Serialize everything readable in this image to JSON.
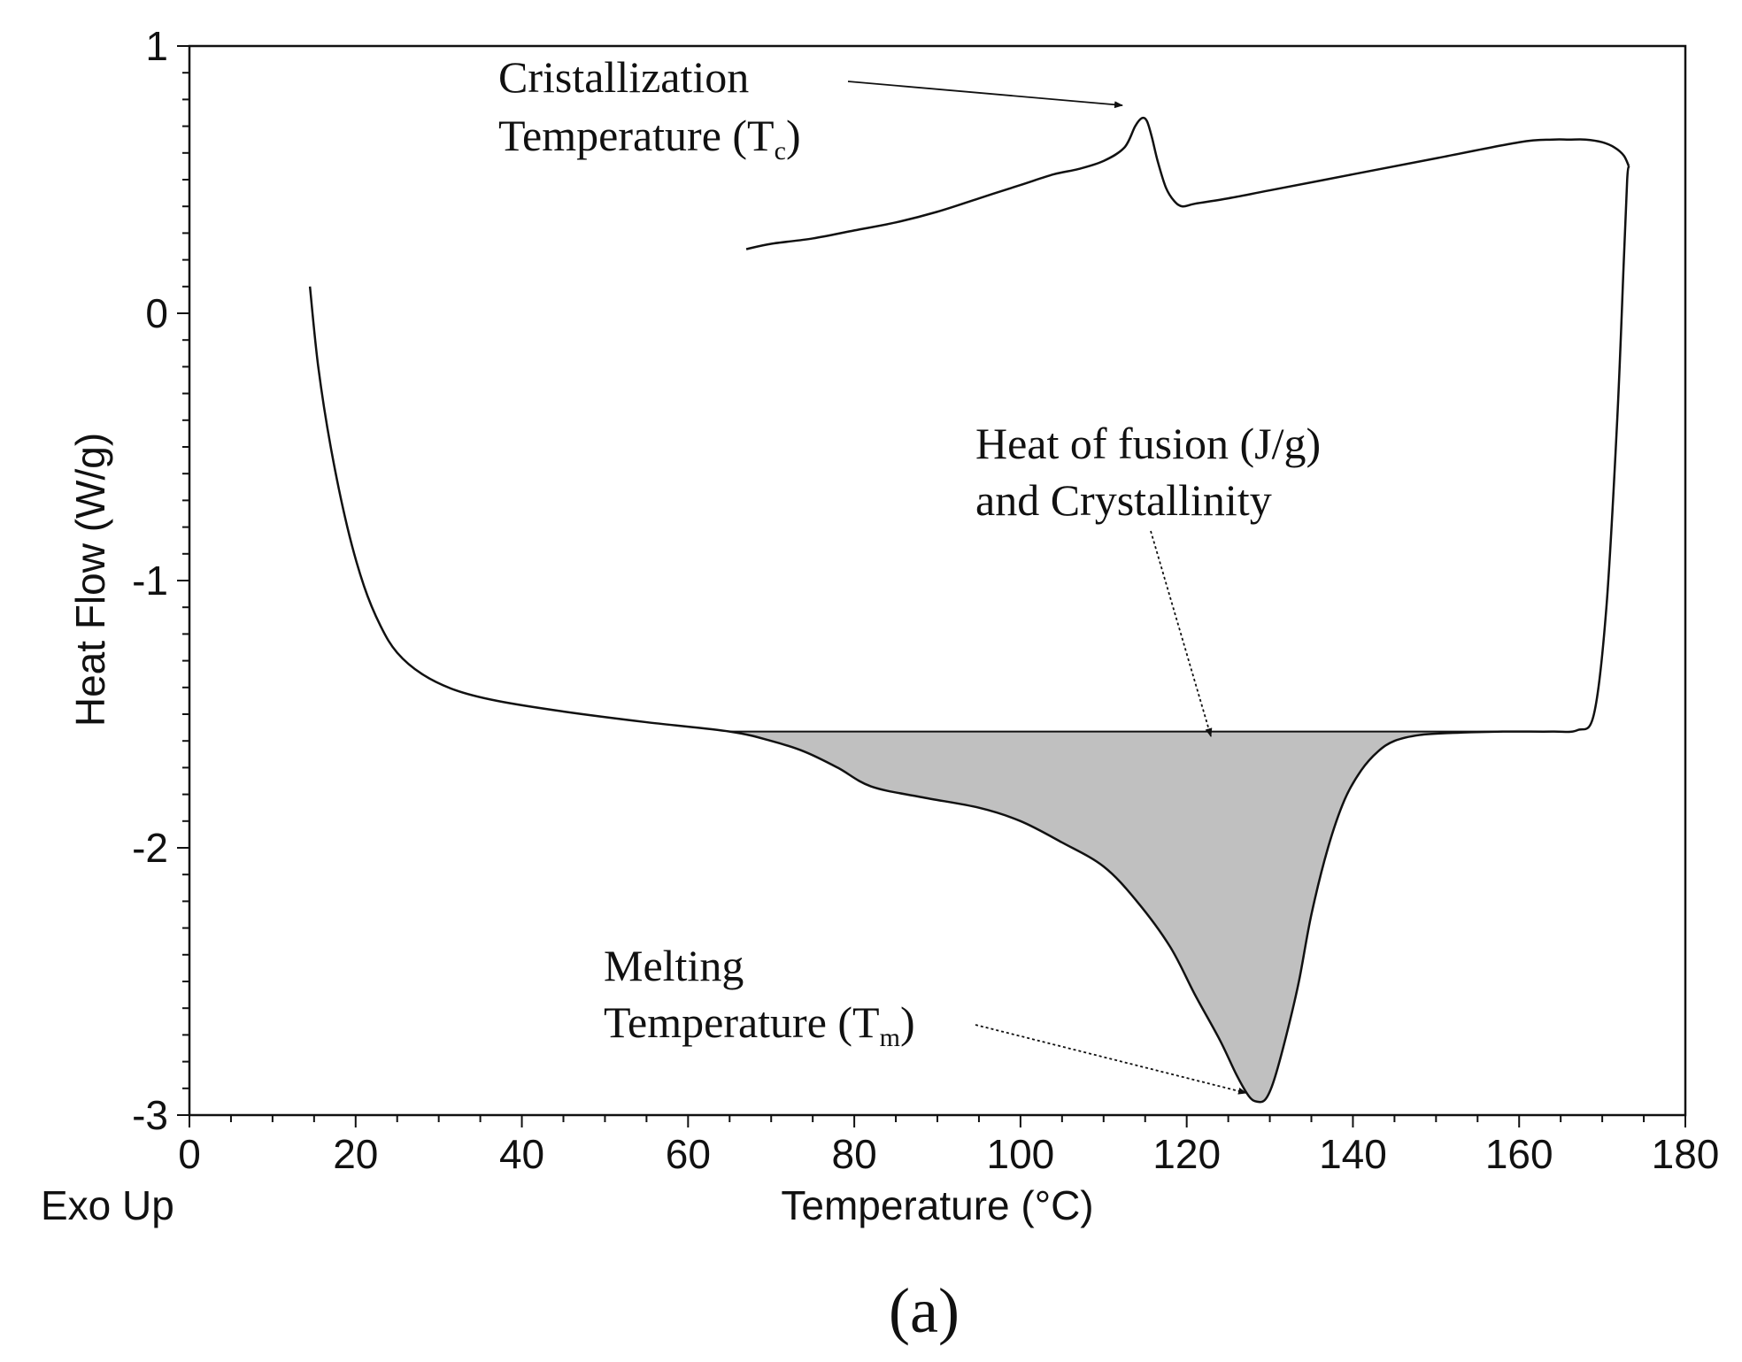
{
  "chart_data": {
    "type": "line",
    "title": "",
    "xlabel": "Temperature (°C)",
    "ylabel": "Heat Flow (W/g)",
    "corner_label": "Exo Up",
    "caption": "(a)",
    "xlim": [
      0,
      180
    ],
    "ylim": [
      -3,
      1
    ],
    "xticks": [
      0,
      20,
      40,
      60,
      80,
      100,
      120,
      140,
      160,
      180
    ],
    "yticks": [
      1,
      0,
      -1,
      -2,
      -3
    ],
    "xtick_labels": [
      "0",
      "20",
      "40",
      "60",
      "80",
      "100",
      "120",
      "140",
      "160",
      "180"
    ],
    "ytick_labels": [
      "1",
      "0",
      "-1",
      "-2",
      "-3"
    ],
    "x_minor_step": 5,
    "y_minor_step": 0.1,
    "colors": {
      "line": "#111111",
      "fill": "#c0c0c0"
    },
    "series": [
      {
        "name": "heating",
        "x": [
          14.5,
          15.5,
          17,
          19,
          21,
          23,
          25,
          28,
          32,
          37,
          45,
          55,
          65,
          70,
          74,
          78,
          82,
          88,
          95,
          100,
          105,
          110,
          114,
          118,
          121,
          124,
          126,
          127.5,
          128.5,
          129.5,
          130.5,
          132,
          133.5,
          135,
          137,
          139,
          141,
          143,
          145,
          148,
          152,
          158,
          164,
          167,
          169,
          170.5,
          171.8,
          172.6,
          173.0,
          173.2
        ],
        "y": [
          0.1,
          -0.2,
          -0.5,
          -0.8,
          -1.02,
          -1.17,
          -1.27,
          -1.35,
          -1.41,
          -1.45,
          -1.49,
          -1.53,
          -1.565,
          -1.6,
          -1.64,
          -1.7,
          -1.77,
          -1.81,
          -1.85,
          -1.9,
          -1.98,
          -2.07,
          -2.2,
          -2.37,
          -2.55,
          -2.72,
          -2.85,
          -2.93,
          -2.95,
          -2.94,
          -2.87,
          -2.7,
          -2.5,
          -2.25,
          -2.0,
          -1.82,
          -1.71,
          -1.64,
          -1.6,
          -1.578,
          -1.57,
          -1.565,
          -1.565,
          -1.56,
          -1.5,
          -1.1,
          -0.4,
          0.2,
          0.5,
          0.55
        ]
      },
      {
        "name": "cooling",
        "x": [
          173.2,
          172.6,
          171.5,
          170,
          168,
          166,
          164,
          160,
          150,
          140,
          130,
          125,
          121,
          119.5,
          118.5,
          117.5,
          116.5,
          115.8,
          115.2,
          114.6,
          113.8,
          112.5,
          110,
          107,
          104,
          100,
          95,
          90,
          85,
          80,
          75,
          70,
          67
        ],
        "y": [
          0.55,
          0.59,
          0.62,
          0.64,
          0.65,
          0.65,
          0.65,
          0.64,
          0.58,
          0.52,
          0.46,
          0.43,
          0.41,
          0.4,
          0.42,
          0.47,
          0.57,
          0.66,
          0.72,
          0.73,
          0.7,
          0.62,
          0.57,
          0.54,
          0.52,
          0.48,
          0.43,
          0.38,
          0.34,
          0.31,
          0.28,
          0.26,
          0.24
        ]
      }
    ],
    "shaded_region": {
      "label": "heat of fusion area",
      "baseline_y": -1.565,
      "x_start": 65,
      "x_end": 158
    },
    "annotations": [
      {
        "name": "crystallization",
        "lines": [
          "Cristallization",
          "Temperature (T",
          "c",
          ")"
        ],
        "target": [
          112,
          0.77
        ]
      },
      {
        "name": "heat-of-fusion",
        "lines": [
          "Heat of fusion (J/g)",
          "and Crystallinity"
        ],
        "target": [
          123,
          -1.6
        ]
      },
      {
        "name": "melting",
        "lines": [
          "Melting",
          "Temperature (T",
          "m",
          ")"
        ],
        "target": [
          127.5,
          -2.92
        ]
      }
    ]
  }
}
